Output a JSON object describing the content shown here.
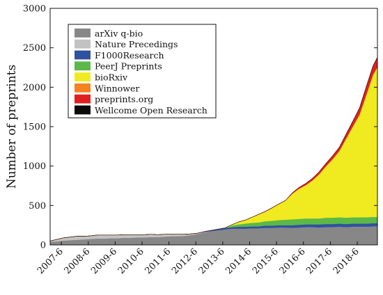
{
  "chart_data": {
    "type": "area",
    "stacked": true,
    "title": "",
    "xlabel": "",
    "ylabel": "Number of preprints",
    "ylim": [
      0,
      3000
    ],
    "yticks": [
      0,
      500,
      1000,
      1500,
      2000,
      2500,
      3000
    ],
    "x_start": "2007-1",
    "x_end": "2019-3",
    "xtick_labels": [
      "2007-6",
      "2008-6",
      "2009-6",
      "2010-6",
      "2011-6",
      "2012-6",
      "2013-6",
      "2014-6",
      "2015-6",
      "2016-6",
      "2017-6",
      "2018-6"
    ],
    "grid": false,
    "legend": "top-left",
    "x": [
      "2007-1",
      "2007-4",
      "2007-7",
      "2007-10",
      "2008-1",
      "2008-4",
      "2008-7",
      "2008-10",
      "2009-1",
      "2009-4",
      "2009-7",
      "2009-10",
      "2010-1",
      "2010-4",
      "2010-7",
      "2010-10",
      "2011-1",
      "2011-4",
      "2011-7",
      "2011-10",
      "2012-1",
      "2012-4",
      "2012-7",
      "2012-10",
      "2013-1",
      "2013-4",
      "2013-7",
      "2013-10",
      "2014-1",
      "2014-4",
      "2014-7",
      "2014-10",
      "2015-1",
      "2015-4",
      "2015-7",
      "2015-10",
      "2016-1",
      "2016-4",
      "2016-7",
      "2016-10",
      "2017-1",
      "2017-4",
      "2017-7",
      "2017-10",
      "2018-1",
      "2018-4",
      "2018-7",
      "2018-10",
      "2019-1",
      "2019-3"
    ],
    "series": [
      {
        "name": "arXiv q-bio",
        "color": "#878787",
        "values": [
          40,
          45,
          55,
          60,
          65,
          70,
          75,
          80,
          80,
          85,
          85,
          90,
          90,
          95,
          95,
          100,
          100,
          105,
          110,
          110,
          115,
          125,
          140,
          160,
          175,
          185,
          195,
          205,
          205,
          205,
          210,
          210,
          215,
          215,
          220,
          220,
          215,
          220,
          225,
          225,
          220,
          225,
          225,
          230,
          225,
          230,
          230,
          230,
          235,
          235
        ]
      },
      {
        "name": "Nature Precedings",
        "color": "#c2c2c2",
        "values": [
          10,
          25,
          35,
          40,
          45,
          40,
          40,
          45,
          45,
          40,
          40,
          40,
          40,
          35,
          35,
          35,
          30,
          30,
          25,
          25,
          20,
          15,
          10,
          5,
          0,
          0,
          0,
          0,
          0,
          0,
          0,
          0,
          0,
          0,
          0,
          0,
          0,
          0,
          0,
          0,
          0,
          0,
          0,
          0,
          0,
          0,
          0,
          0,
          0,
          0
        ]
      },
      {
        "name": "F1000Research",
        "color": "#3050a0",
        "values": [
          0,
          0,
          0,
          0,
          0,
          0,
          0,
          0,
          0,
          0,
          0,
          0,
          0,
          0,
          0,
          0,
          0,
          0,
          0,
          0,
          0,
          0,
          0,
          5,
          10,
          15,
          20,
          20,
          25,
          25,
          25,
          25,
          30,
          30,
          30,
          30,
          35,
          35,
          35,
          35,
          40,
          40,
          40,
          40,
          40,
          40,
          40,
          40,
          40,
          40
        ]
      },
      {
        "name": "PeerJ Preprints",
        "color": "#5cb848",
        "values": [
          0,
          0,
          0,
          0,
          0,
          0,
          0,
          0,
          0,
          0,
          0,
          0,
          0,
          0,
          0,
          0,
          0,
          0,
          0,
          0,
          0,
          0,
          0,
          0,
          0,
          0,
          0,
          20,
          30,
          40,
          45,
          50,
          55,
          60,
          65,
          70,
          75,
          75,
          75,
          75,
          75,
          80,
          80,
          80,
          80,
          80,
          80,
          80,
          80,
          80
        ]
      },
      {
        "name": "bioRxiv",
        "color": "#f0ea20",
        "values": [
          0,
          0,
          0,
          0,
          0,
          0,
          0,
          0,
          0,
          0,
          0,
          0,
          0,
          0,
          0,
          0,
          0,
          0,
          0,
          0,
          0,
          0,
          0,
          0,
          0,
          0,
          0,
          10,
          30,
          45,
          70,
          100,
          120,
          160,
          200,
          240,
          320,
          380,
          420,
          480,
          560,
          650,
          740,
          840,
          1000,
          1150,
          1300,
          1550,
          1800,
          1900
        ]
      },
      {
        "name": "Winnower",
        "color": "#f58220",
        "values": [
          0,
          0,
          0,
          0,
          0,
          0,
          0,
          0,
          0,
          0,
          0,
          0,
          0,
          0,
          0,
          0,
          0,
          0,
          0,
          0,
          0,
          0,
          0,
          0,
          0,
          0,
          0,
          0,
          0,
          0,
          0,
          3,
          5,
          6,
          6,
          5,
          5,
          4,
          4,
          4,
          3,
          3,
          3,
          3,
          2,
          2,
          2,
          2,
          2,
          2
        ]
      },
      {
        "name": "preprints.org",
        "color": "#e02020",
        "values": [
          0,
          0,
          0,
          0,
          0,
          0,
          0,
          0,
          0,
          0,
          0,
          0,
          0,
          0,
          0,
          0,
          0,
          0,
          0,
          0,
          0,
          0,
          0,
          0,
          0,
          0,
          0,
          0,
          0,
          0,
          0,
          0,
          0,
          0,
          0,
          0,
          10,
          15,
          20,
          25,
          30,
          35,
          40,
          45,
          55,
          65,
          80,
          100,
          110,
          120
        ]
      },
      {
        "name": "Wellcome Open Research",
        "color": "#0a0a0a",
        "values": [
          0,
          0,
          0,
          0,
          0,
          0,
          0,
          0,
          0,
          0,
          0,
          0,
          0,
          0,
          0,
          0,
          0,
          0,
          0,
          0,
          0,
          0,
          0,
          0,
          0,
          0,
          0,
          0,
          0,
          0,
          0,
          0,
          0,
          0,
          0,
          0,
          0,
          0,
          0,
          0,
          1,
          2,
          3,
          3,
          4,
          4,
          5,
          5,
          5,
          5
        ]
      }
    ]
  }
}
